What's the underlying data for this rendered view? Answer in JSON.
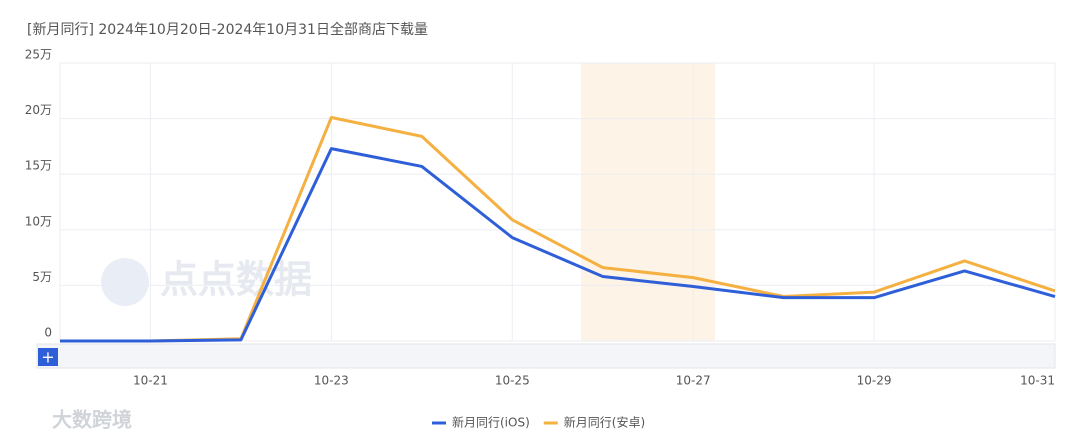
{
  "chart_data": {
    "type": "line",
    "title": "[新月同行] 2024年10月20日-2024年10月31日全部商店下载量",
    "categories": [
      null,
      "10-21",
      null,
      "10-23",
      null,
      "10-25",
      null,
      "10-27",
      null,
      "10-29",
      null,
      "10-31"
    ],
    "series": [
      {
        "name": "新月同行(iOS)",
        "color": "#2f5fd8",
        "values": [
          0,
          0,
          0.1,
          17.3,
          15.7,
          9.3,
          5.8,
          4.9,
          3.9,
          3.9,
          6.3,
          4.0
        ]
      },
      {
        "name": "新月同行(安卓)",
        "color": "#f5b042",
        "values": [
          0,
          0,
          0.2,
          20.1,
          18.4,
          10.9,
          6.6,
          5.7,
          4.0,
          4.4,
          7.2,
          4.5
        ]
      }
    ],
    "ylim": [
      0,
      25
    ],
    "yticks": [
      0,
      {
        "value": 5,
        "label": "5万"
      },
      {
        "value": 10,
        "label": "10万"
      },
      {
        "value": 15,
        "label": "15万"
      },
      {
        "value": 20,
        "label": "20万"
      },
      {
        "value": 25,
        "label": "25万"
      }
    ],
    "grid": true
  },
  "watermarks": [
    "点点数据",
    "大数跨境"
  ]
}
